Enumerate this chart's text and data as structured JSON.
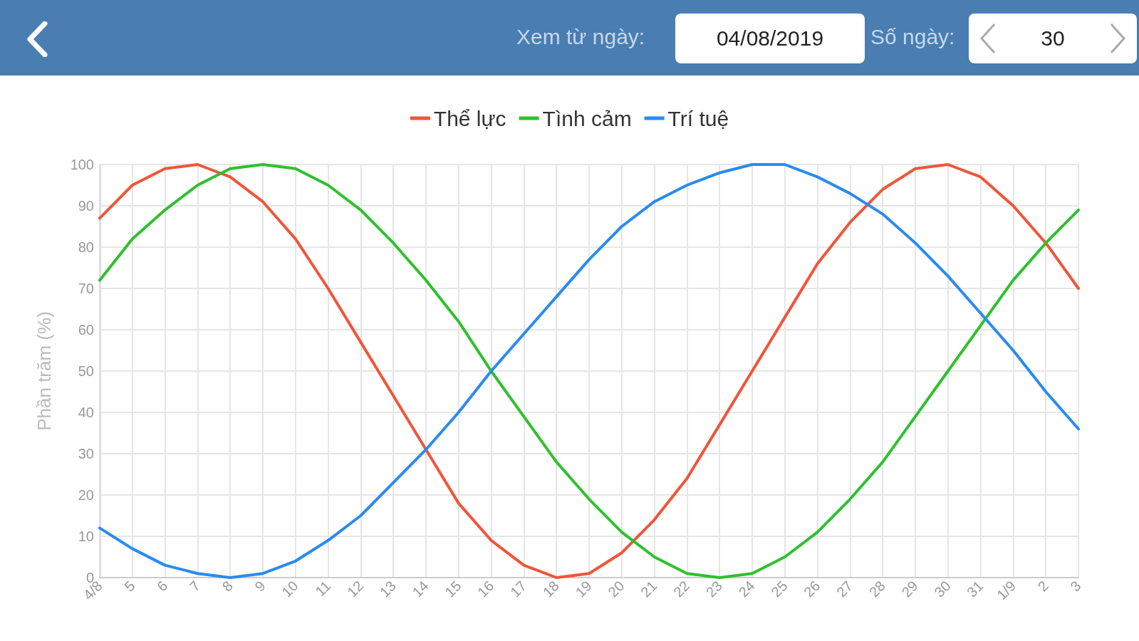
{
  "chart_data": {
    "type": "line",
    "ylabel": "Phần trăm (%)",
    "annotations": [
      "Xem từ ngày:",
      "04/08/2019",
      "Số ngày:",
      "30"
    ],
    "categories": [
      "4/8",
      "5",
      "6",
      "7",
      "8",
      "9",
      "10",
      "11",
      "12",
      "13",
      "14",
      "15",
      "16",
      "17",
      "18",
      "19",
      "20",
      "21",
      "22",
      "23",
      "24",
      "25",
      "26",
      "27",
      "28",
      "29",
      "30",
      "31",
      "1/9",
      "2",
      "3"
    ],
    "series": [
      {
        "name": "Thể lực",
        "color": "#f0553a",
        "values": [
          87,
          95,
          99,
          100,
          97,
          91,
          82,
          70,
          57,
          44,
          31,
          18,
          9,
          3,
          0,
          1,
          6,
          14,
          24,
          37,
          50,
          63,
          76,
          86,
          94,
          99,
          100,
          97,
          90,
          81,
          70
        ]
      },
      {
        "name": "Tình cảm",
        "color": "#2ec12e",
        "values": [
          72,
          82,
          89,
          95,
          99,
          100,
          99,
          95,
          89,
          81,
          72,
          62,
          50,
          39,
          28,
          19,
          11,
          5,
          1,
          0,
          1,
          5,
          11,
          19,
          28,
          39,
          50,
          61,
          72,
          81,
          89
        ]
      },
      {
        "name": "Trí tuệ",
        "color": "#2a8af0",
        "values": [
          12,
          7,
          3,
          1,
          0,
          1,
          4,
          9,
          15,
          23,
          31,
          40,
          50,
          59,
          68,
          77,
          85,
          91,
          95,
          98,
          100,
          100,
          97,
          93,
          88,
          81,
          73,
          64,
          55,
          45,
          36
        ]
      }
    ],
    "ylim": [
      0,
      100
    ],
    "yticks": [
      0,
      10,
      20,
      30,
      40,
      50,
      60,
      70,
      80,
      90,
      100
    ],
    "grid": true,
    "legend": "top",
    "marker": "none",
    "line_style": "solid"
  }
}
